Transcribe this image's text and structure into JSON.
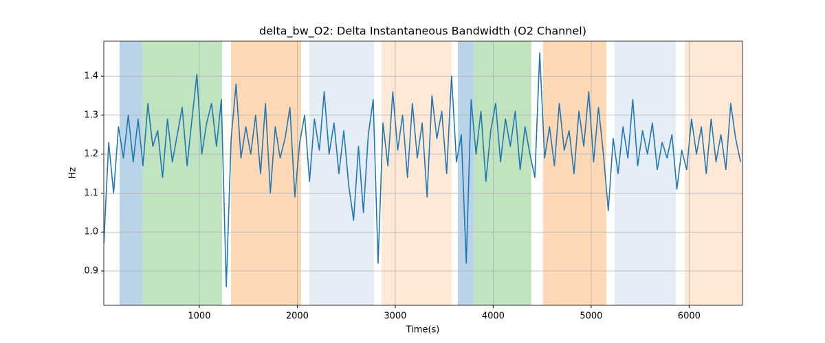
{
  "chart_data": {
    "type": "line",
    "title": "delta_bw_O2: Delta Instantaneous Bandwidth (O2 Channel)",
    "xlabel": "Time(s)",
    "ylabel": "Hz",
    "xlim": [
      25,
      6545
    ],
    "ylim": [
      0.812,
      1.49
    ],
    "xticks": [
      1000,
      2000,
      3000,
      4000,
      5000,
      6000
    ],
    "yticks": [
      0.9,
      {
        "value": 1,
        "label": "1.0"
      },
      1.1,
      1.2,
      1.3,
      1.4
    ],
    "grid": true,
    "spans": [
      {
        "x0": 186,
        "x1": 417,
        "color": "#b9d3e8"
      },
      {
        "x0": 417,
        "x1": 1232,
        "color": "#bfe4bf"
      },
      {
        "x0": 1323,
        "x1": 2039,
        "color": "#ffd8b5"
      },
      {
        "x0": 2123,
        "x1": 2782,
        "color": "#e5edf7"
      },
      {
        "x0": 2860,
        "x1": 3575,
        "color": "#ffe9d6"
      },
      {
        "x0": 3639,
        "x1": 3800,
        "color": "#b9d3e8"
      },
      {
        "x0": 3800,
        "x1": 4389,
        "color": "#bfe4bf"
      },
      {
        "x0": 4509,
        "x1": 5154,
        "color": "#ffd8b5"
      },
      {
        "x0": 5239,
        "x1": 5863,
        "color": "#e5edf7"
      },
      {
        "x0": 5954,
        "x1": 6545,
        "color": "#ffe9d6"
      }
    ],
    "x": [
      25,
      75,
      125,
      175,
      225,
      275,
      325,
      375,
      425,
      475,
      525,
      575,
      625,
      675,
      725,
      775,
      825,
      875,
      925,
      975,
      1025,
      1075,
      1125,
      1175,
      1225,
      1275,
      1325,
      1375,
      1425,
      1475,
      1525,
      1575,
      1625,
      1675,
      1725,
      1775,
      1825,
      1875,
      1925,
      1975,
      2025,
      2075,
      2125,
      2175,
      2225,
      2275,
      2325,
      2375,
      2425,
      2475,
      2525,
      2575,
      2625,
      2675,
      2725,
      2775,
      2825,
      2875,
      2925,
      2975,
      3025,
      3075,
      3125,
      3175,
      3225,
      3275,
      3325,
      3375,
      3425,
      3475,
      3525,
      3575,
      3625,
      3675,
      3725,
      3775,
      3825,
      3875,
      3925,
      3975,
      4025,
      4075,
      4125,
      4175,
      4225,
      4275,
      4325,
      4375,
      4425,
      4475,
      4525,
      4575,
      4625,
      4675,
      4725,
      4775,
      4825,
      4875,
      4925,
      4975,
      5025,
      5075,
      5125,
      5175,
      5225,
      5275,
      5325,
      5375,
      5425,
      5475,
      5525,
      5575,
      5625,
      5675,
      5725,
      5775,
      5825,
      5875,
      5925,
      5975,
      6025,
      6075,
      6125,
      6175,
      6225,
      6275,
      6325,
      6375,
      6425,
      6475,
      6525
    ],
    "series": [
      {
        "color": "#1f77b4",
        "values": [
          0.97,
          1.23,
          1.1,
          1.27,
          1.19,
          1.3,
          1.18,
          1.29,
          1.17,
          1.33,
          1.22,
          1.26,
          1.14,
          1.29,
          1.18,
          1.25,
          1.32,
          1.17,
          1.29,
          1.405,
          1.2,
          1.28,
          1.33,
          1.22,
          1.34,
          0.86,
          1.24,
          1.38,
          1.19,
          1.27,
          1.2,
          1.3,
          1.15,
          1.33,
          1.1,
          1.27,
          1.19,
          1.24,
          1.32,
          1.09,
          1.23,
          1.3,
          1.13,
          1.29,
          1.21,
          1.36,
          1.2,
          1.28,
          1.15,
          1.26,
          1.12,
          1.03,
          1.22,
          1.05,
          1.25,
          1.34,
          0.92,
          1.28,
          1.17,
          1.36,
          1.21,
          1.3,
          1.14,
          1.33,
          1.19,
          1.28,
          1.09,
          1.35,
          1.24,
          1.31,
          1.15,
          1.4,
          1.18,
          1.25,
          0.92,
          1.34,
          1.2,
          1.31,
          1.13,
          1.26,
          1.33,
          1.18,
          1.29,
          1.22,
          1.31,
          1.16,
          1.27,
          1.2,
          1.14,
          1.46,
          1.19,
          1.27,
          1.17,
          1.33,
          1.21,
          1.26,
          1.15,
          1.31,
          1.22,
          1.36,
          1.18,
          1.32,
          1.2,
          1.055,
          1.24,
          1.15,
          1.27,
          1.19,
          1.34,
          1.17,
          1.26,
          1.2,
          1.28,
          1.16,
          1.23,
          1.19,
          1.25,
          1.11,
          1.21,
          1.16,
          1.29,
          1.2,
          1.27,
          1.15,
          1.29,
          1.18,
          1.25,
          1.16,
          1.33,
          1.24,
          1.18
        ]
      }
    ]
  }
}
